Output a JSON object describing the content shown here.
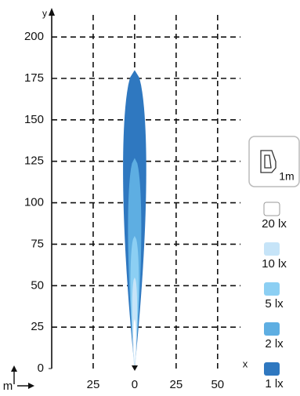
{
  "chart_data": {
    "type": "isolux",
    "x_label": "x",
    "y_label": "y",
    "unit_label": "m",
    "icon_label": "1m",
    "xlim": [
      -50,
      60
    ],
    "ylim": [
      0,
      210
    ],
    "xticks": [
      {
        "value": -25,
        "label": "25"
      },
      0,
      25,
      50
    ],
    "yticks": [
      0,
      25,
      50,
      75,
      100,
      125,
      150,
      175,
      200
    ],
    "grid": true,
    "series": [
      {
        "name": "20 lx",
        "color": "#ffffff",
        "reach": 30,
        "half_width": 1
      },
      {
        "name": "10 lx",
        "color": "#c6e4f8",
        "reach": 55,
        "half_width": 1.5
      },
      {
        "name": "5 lx",
        "color": "#8ccff3",
        "reach": 80,
        "half_width": 2.5
      },
      {
        "name": "2 lx",
        "color": "#5eaee2",
        "reach": 127,
        "half_width": 4
      },
      {
        "name": "1 lx",
        "color": "#2f78c0",
        "reach": 180,
        "half_width": 7
      }
    ]
  }
}
